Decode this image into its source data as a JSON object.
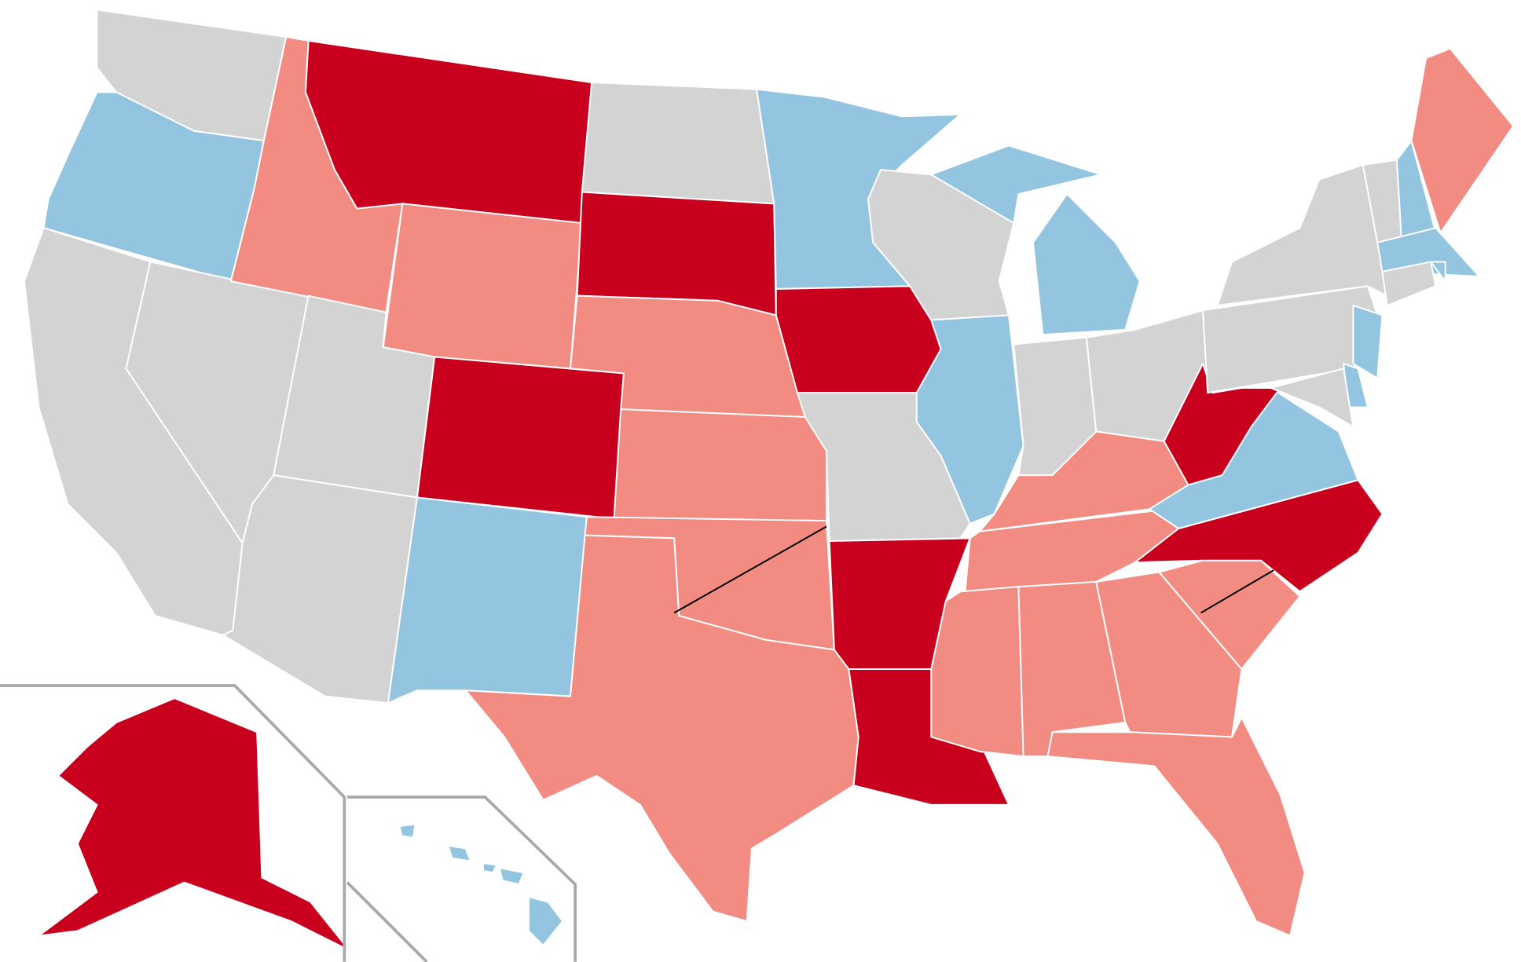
{
  "map": {
    "palette": [
      "#c8001e",
      "#f28b82",
      "#94c5e0",
      "#d3d3d3"
    ],
    "border_color": "#ffffff",
    "inset_frame_color": "#a8a8a8",
    "divider_color": "#000000"
  }
}
